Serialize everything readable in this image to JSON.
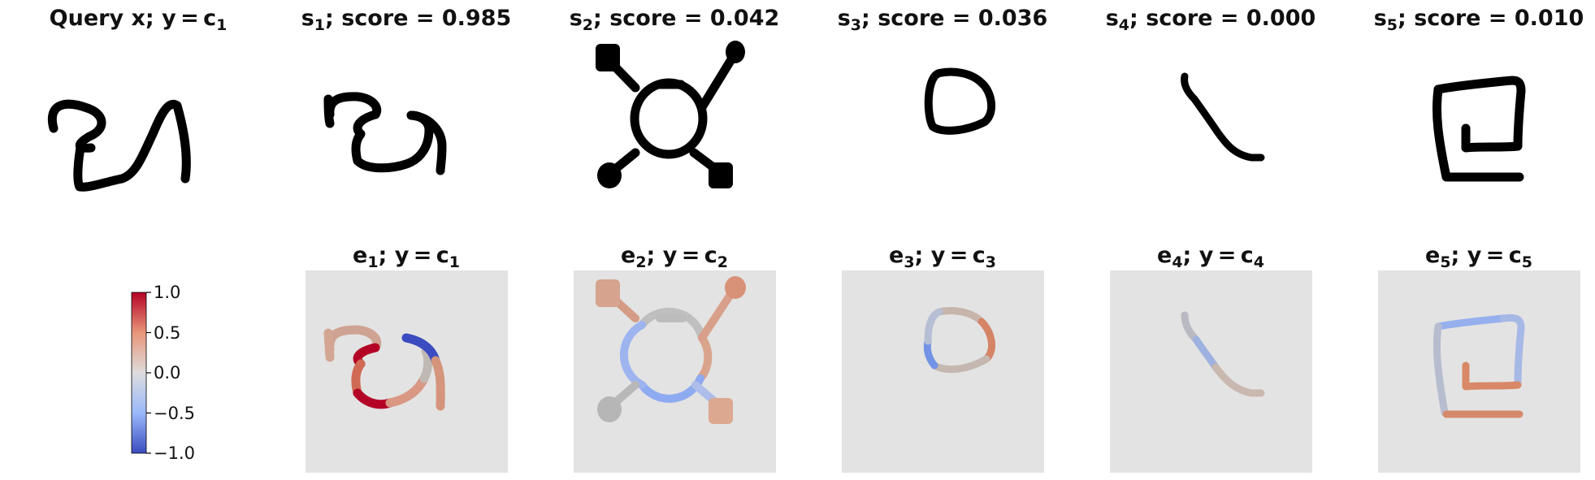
{
  "top_row": [
    {
      "title_main": "Query x; y = c",
      "title_sub": "1"
    },
    {
      "title_lead": "s",
      "title_sub": "1",
      "title_tail": "; score = 0.985"
    },
    {
      "title_lead": "s",
      "title_sub": "2",
      "title_tail": "; score = 0.042"
    },
    {
      "title_lead": "s",
      "title_sub": "3",
      "title_tail": "; score = 0.036"
    },
    {
      "title_lead": "s",
      "title_sub": "4",
      "title_tail": "; score = 0.000"
    },
    {
      "title_lead": "s",
      "title_sub": "5",
      "title_tail": "; score = 0.010"
    }
  ],
  "bottom_row": [
    {
      "lead": "e",
      "sub1": "1",
      "mid": "; y = c",
      "sub2": "1"
    },
    {
      "lead": "e",
      "sub1": "2",
      "mid": "; y = c",
      "sub2": "2"
    },
    {
      "lead": "e",
      "sub1": "3",
      "mid": "; y = c",
      "sub2": "3"
    },
    {
      "lead": "e",
      "sub1": "4",
      "mid": "; y = c",
      "sub2": "4"
    },
    {
      "lead": "e",
      "sub1": "5",
      "mid": "; y = c",
      "sub2": "5"
    }
  ],
  "colorbar": {
    "ticks": [
      "1.0",
      "0.5",
      "0.0",
      "−0.5",
      "−1.0"
    ],
    "colormap": "coolwarm",
    "range": [
      -1.0,
      1.0
    ]
  },
  "colors": {
    "panel_bg": "#e3e3e3",
    "ink": "#000000",
    "strong_red": "#b40426",
    "red": "#d6806a",
    "neutral": "#bdbdbd",
    "blue": "#7b9ff9",
    "strong_blue": "#3b4cc0"
  }
}
